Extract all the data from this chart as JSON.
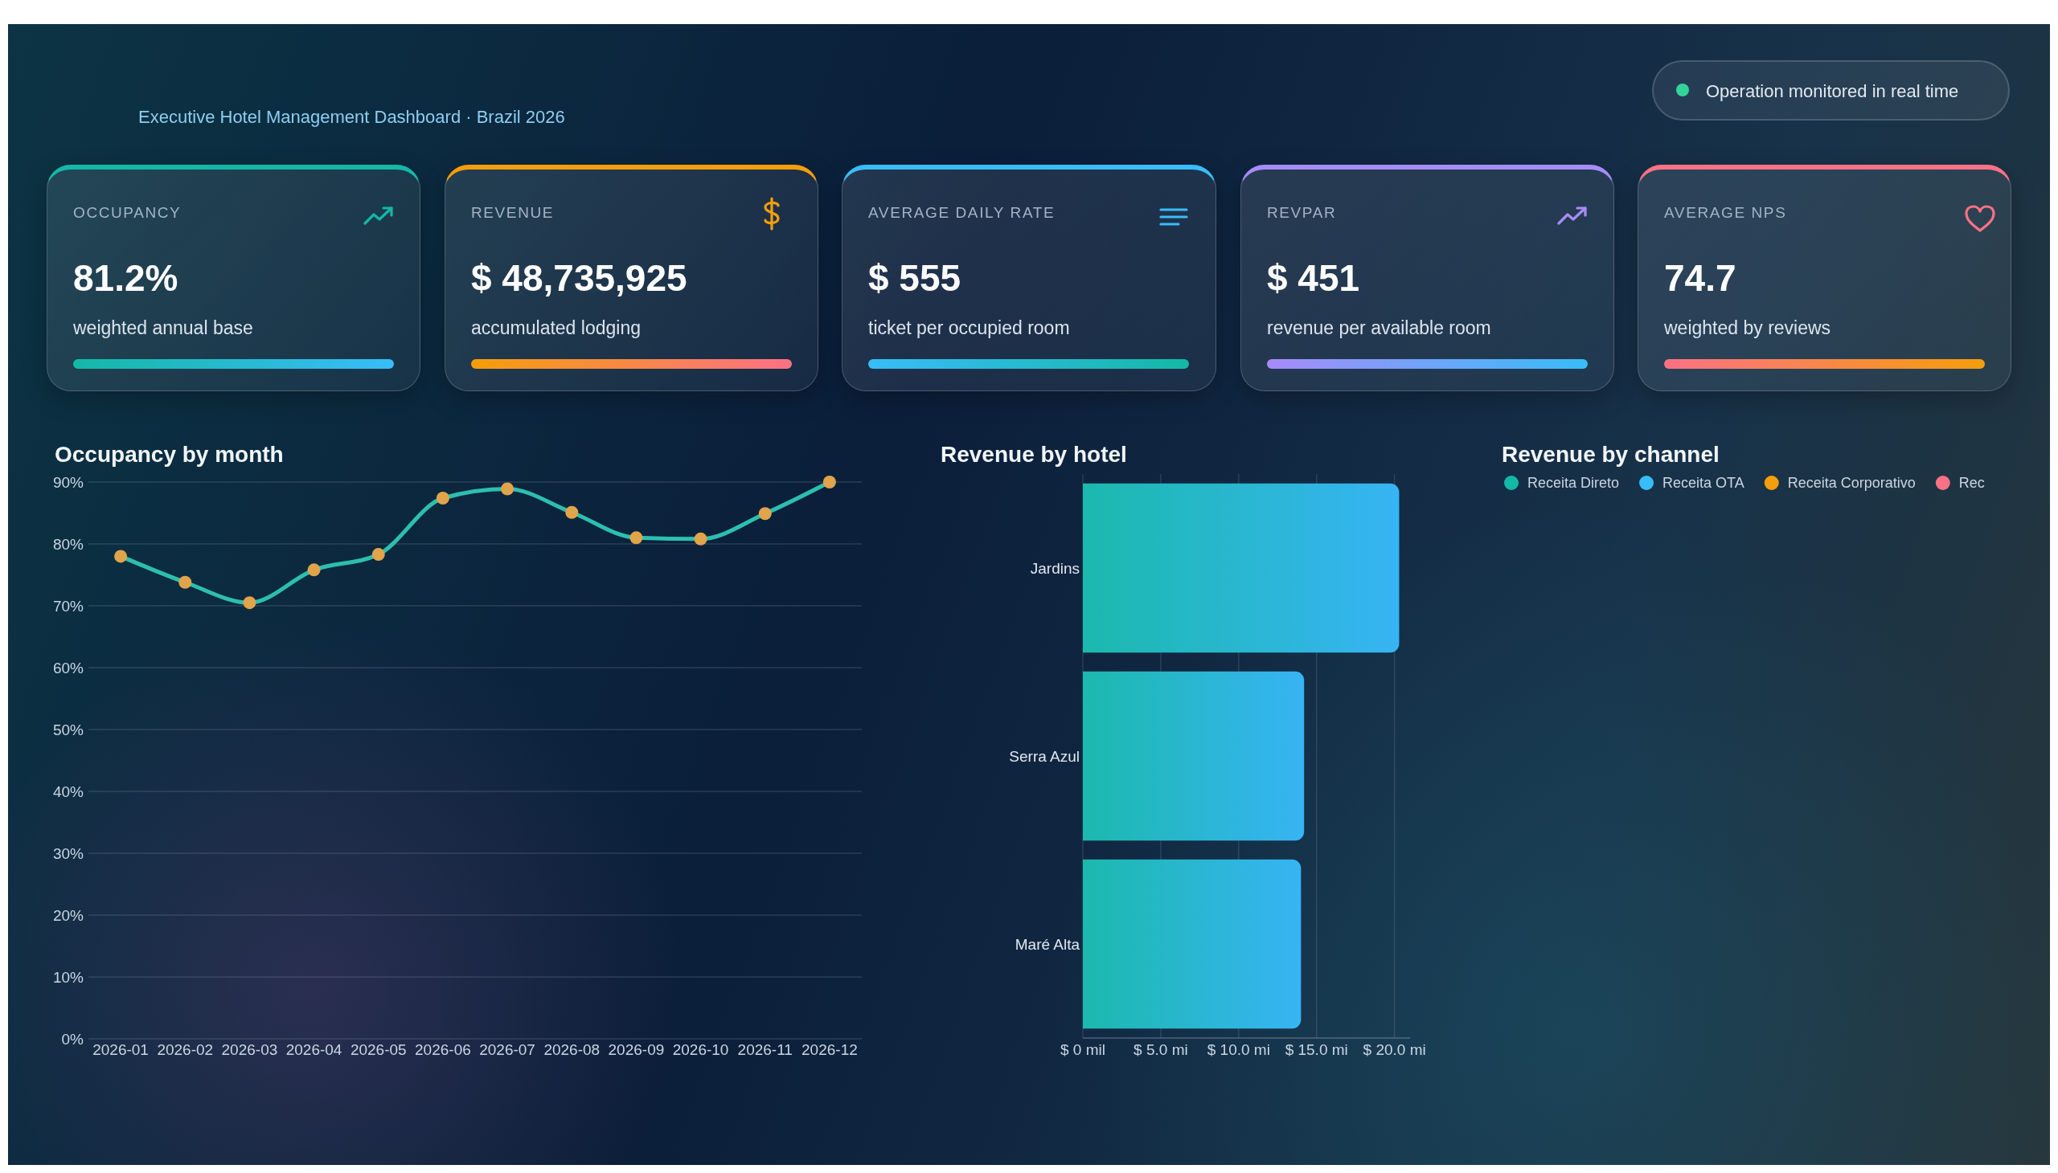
{
  "chart_data": [
    {
      "type": "other",
      "subtitle": "Executive Hotel Management Dashboard · Brazil 2026",
      "annotations": [
        "Operation monitored in real time"
      ]
    },
    {
      "type": "other",
      "title": "OCCUPANCY",
      "annotations": [
        "81.2%",
        "weighted annual base"
      ],
      "color": "#14b8a6"
    },
    {
      "type": "other",
      "title": "REVENUE",
      "annotations": [
        "$ 48,735,925",
        "accumulated lodging"
      ],
      "color": "#f59e0b"
    },
    {
      "type": "other",
      "title": "AVERAGE DAILY RATE",
      "annotations": [
        "$ 555",
        "ticket per occupied room"
      ],
      "color": "#38bdf8"
    },
    {
      "type": "other",
      "title": "REVPAR",
      "annotations": [
        "$ 451",
        "revenue per available room"
      ],
      "color": "#a78bfa"
    },
    {
      "type": "other",
      "title": "AVERAGE NPS",
      "annotations": [
        "74.7",
        "weighted by reviews"
      ],
      "color": "#fb7185"
    },
    {
      "type": "line",
      "title": "Occupancy by month",
      "categories": [
        "2026-01",
        "2026-02",
        "2026-03",
        "2026-04",
        "2026-05",
        "2026-06",
        "2026-07",
        "2026-08",
        "2026-09",
        "2026-10",
        "2026-11",
        "2026-12"
      ],
      "values": [
        78.0,
        73.8,
        70.5,
        75.8,
        78.3,
        87.4,
        88.9,
        85.1,
        81.0,
        80.8,
        84.9,
        90.0
      ],
      "color": "#2dbfae",
      "colors": [
        "#e0a44a",
        "#e0a44a",
        "#e0a44a",
        "#e0a44a",
        "#e0a44a",
        "#e0a44a",
        "#e0a44a",
        "#e0a44a",
        "#e0a44a",
        "#e0a44a",
        "#e0a44a",
        "#e0a44a"
      ],
      "ylim": [
        0,
        90
      ],
      "yticks": [
        {
          "value": 0,
          "label": "0%"
        },
        {
          "value": 10,
          "label": "10%"
        },
        {
          "value": 20,
          "label": "20%"
        },
        {
          "value": 30,
          "label": "30%"
        },
        {
          "value": 40,
          "label": "40%"
        },
        {
          "value": 50,
          "label": "50%"
        },
        {
          "value": 60,
          "label": "60%"
        },
        {
          "value": 70,
          "label": "70%"
        },
        {
          "value": 80,
          "label": "80%"
        },
        {
          "value": 90,
          "label": "90%"
        }
      ],
      "grid": "y",
      "marker": "circle",
      "line_style": "solid"
    },
    {
      "type": "bar",
      "orientation": "horizontal",
      "title": "Revenue by hotel",
      "categories": [
        "Jardins",
        "Serra Azul",
        "Maré Alta"
      ],
      "values": [
        20.3,
        14.2,
        14.0
      ],
      "color": "#26bad2",
      "xlim": [
        0,
        21
      ],
      "xticks": [
        {
          "value": 0,
          "label": "$ 0 mil"
        },
        {
          "value": 5,
          "label": "$ 5.0 mi"
        },
        {
          "value": 10,
          "label": "$ 10.0 mi"
        },
        {
          "value": 15,
          "label": "$ 15.0 mi"
        },
        {
          "value": 20,
          "label": "$ 20.0 mi"
        }
      ],
      "grid": "x"
    },
    {
      "type": "other",
      "title": "Revenue by channel",
      "legend": "top left",
      "series": [
        {
          "name": "Receita Direto",
          "color": "#14b8a6"
        },
        {
          "name": "Receita OTA",
          "color": "#38bdf8"
        },
        {
          "name": "Receita Corporativo",
          "color": "#f59e0b"
        },
        {
          "name": "Rec",
          "color": "#fb7185"
        }
      ]
    }
  ]
}
